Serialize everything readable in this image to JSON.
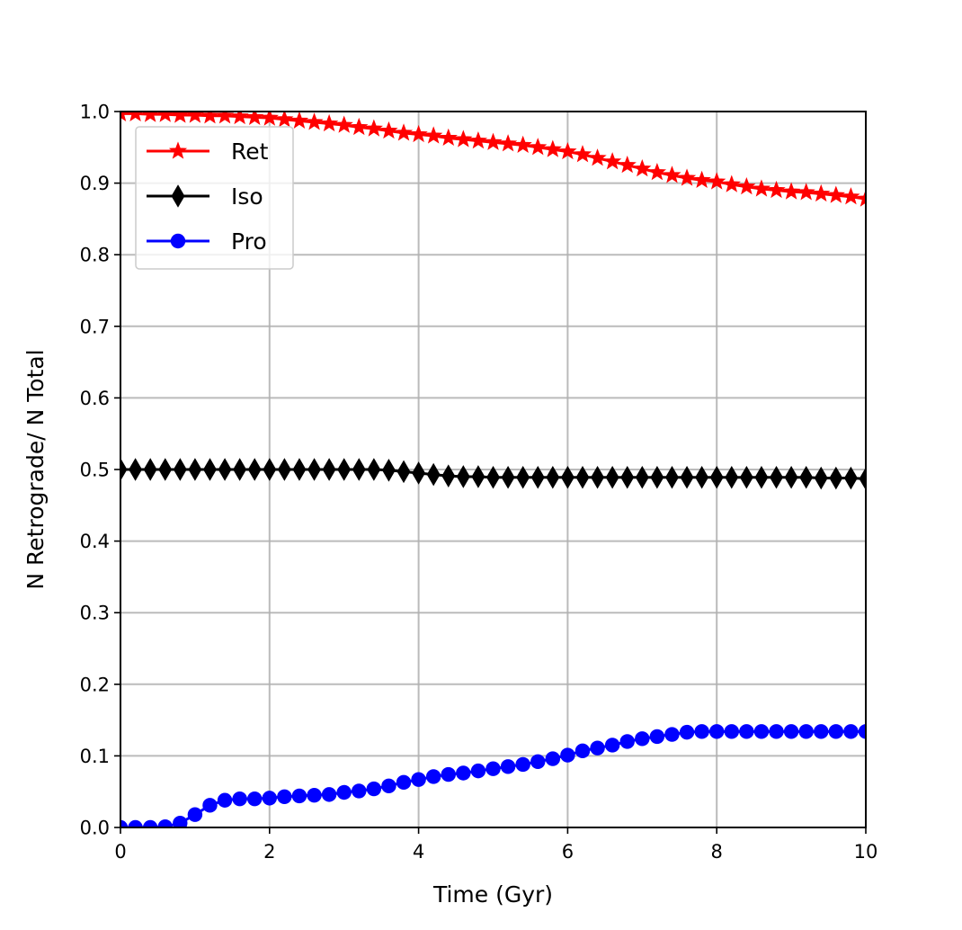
{
  "chart_data": {
    "type": "line",
    "title": "",
    "xlabel": "Time (Gyr)",
    "ylabel": "N Retrograde/ N Total",
    "xlim": [
      0,
      10
    ],
    "ylim": [
      0,
      1.0
    ],
    "xticks": [
      0,
      2,
      4,
      6,
      8,
      10
    ],
    "xtick_labels": [
      "0",
      "2",
      "4",
      "6",
      "8",
      "10"
    ],
    "yticks": [
      0.0,
      0.1,
      0.2,
      0.3,
      0.4,
      0.5,
      0.6,
      0.7,
      0.8,
      0.9,
      1.0
    ],
    "ytick_labels": [
      "0.0",
      "0.1",
      "0.2",
      "0.3",
      "0.4",
      "0.5",
      "0.6",
      "0.7",
      "0.8",
      "0.9",
      "1.0"
    ],
    "grid": true,
    "legend_position": "upper-left",
    "x": [
      0.0,
      0.2,
      0.4,
      0.6,
      0.8,
      1.0,
      1.2,
      1.4,
      1.6,
      1.8,
      2.0,
      2.2,
      2.4,
      2.6,
      2.8,
      3.0,
      3.2,
      3.4,
      3.6,
      3.8,
      4.0,
      4.2,
      4.4,
      4.6,
      4.8,
      5.0,
      5.2,
      5.4,
      5.6,
      5.8,
      6.0,
      6.2,
      6.4,
      6.6,
      6.8,
      7.0,
      7.2,
      7.4,
      7.6,
      7.8,
      8.0,
      8.2,
      8.4,
      8.6,
      8.8,
      9.0,
      9.2,
      9.4,
      9.6,
      9.8,
      10.0
    ],
    "series": [
      {
        "name": "Ret",
        "color": "#ff0000",
        "marker": "star",
        "values": [
          0.997,
          0.997,
          0.996,
          0.996,
          0.995,
          0.995,
          0.994,
          0.994,
          0.993,
          0.992,
          0.991,
          0.989,
          0.987,
          0.985,
          0.983,
          0.981,
          0.978,
          0.976,
          0.973,
          0.97,
          0.968,
          0.966,
          0.963,
          0.961,
          0.959,
          0.957,
          0.955,
          0.953,
          0.95,
          0.947,
          0.944,
          0.94,
          0.935,
          0.93,
          0.925,
          0.92,
          0.915,
          0.911,
          0.907,
          0.904,
          0.902,
          0.898,
          0.895,
          0.892,
          0.89,
          0.888,
          0.887,
          0.885,
          0.883,
          0.881,
          0.878
        ]
      },
      {
        "name": "Iso",
        "color": "#000000",
        "marker": "thin_diamond",
        "values": [
          0.5,
          0.5,
          0.5,
          0.5,
          0.5,
          0.5,
          0.5,
          0.5,
          0.5,
          0.5,
          0.5,
          0.5,
          0.5,
          0.5,
          0.5,
          0.5,
          0.5,
          0.5,
          0.499,
          0.497,
          0.495,
          0.493,
          0.491,
          0.49,
          0.49,
          0.489,
          0.489,
          0.489,
          0.489,
          0.489,
          0.489,
          0.489,
          0.489,
          0.489,
          0.489,
          0.489,
          0.489,
          0.489,
          0.489,
          0.489,
          0.489,
          0.489,
          0.489,
          0.489,
          0.489,
          0.489,
          0.489,
          0.488,
          0.488,
          0.488,
          0.487
        ]
      },
      {
        "name": "Pro",
        "color": "#0000ff",
        "marker": "circle",
        "values": [
          0.0,
          0.0,
          0.0,
          0.001,
          0.006,
          0.018,
          0.031,
          0.038,
          0.04,
          0.04,
          0.041,
          0.043,
          0.044,
          0.045,
          0.046,
          0.049,
          0.051,
          0.054,
          0.058,
          0.063,
          0.067,
          0.071,
          0.074,
          0.076,
          0.079,
          0.082,
          0.085,
          0.088,
          0.092,
          0.096,
          0.101,
          0.107,
          0.111,
          0.115,
          0.12,
          0.124,
          0.127,
          0.13,
          0.133,
          0.134,
          0.134,
          0.134,
          0.134,
          0.134,
          0.134,
          0.134,
          0.134,
          0.134,
          0.134,
          0.134,
          0.134
        ]
      }
    ]
  }
}
